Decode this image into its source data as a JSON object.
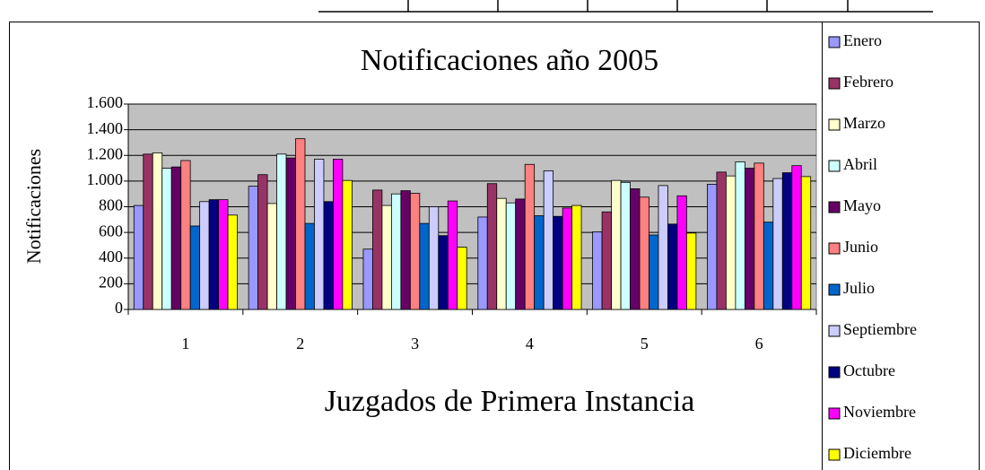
{
  "chart_data": {
    "type": "bar",
    "title": "Notificaciones año 2005",
    "x_label": "Juzgados  de Primera Instancia",
    "y_label": "Notificaciones",
    "categories": [
      "1",
      "2",
      "3",
      "4",
      "5",
      "6"
    ],
    "ylim": [
      0,
      1600
    ],
    "yticks": [
      0,
      {
        "value": 200,
        "label": "200"
      },
      {
        "value": 400,
        "label": "400"
      },
      {
        "value": 600,
        "label": "600"
      },
      {
        "value": 800,
        "label": "800"
      },
      {
        "value": 1000,
        "label": "1.000"
      },
      {
        "value": 1200,
        "label": "1.200"
      },
      {
        "value": 1400,
        "label": "1.400"
      },
      {
        "value": 1600,
        "label": "1.600"
      }
    ],
    "grid": true,
    "legend": "right",
    "series": [
      {
        "name": "Enero",
        "color": "#9999ff",
        "values": [
          810,
          960,
          470,
          720,
          605,
          975
        ]
      },
      {
        "name": "Febrero",
        "color": "#993366",
        "values": [
          1210,
          1050,
          930,
          980,
          760,
          1070
        ]
      },
      {
        "name": "Marzo",
        "color": "#ffffcc",
        "values": [
          1220,
          825,
          810,
          865,
          1005,
          1040
        ]
      },
      {
        "name": "Abril",
        "color": "#ccffff",
        "values": [
          1100,
          1210,
          900,
          830,
          990,
          1150
        ]
      },
      {
        "name": "Mayo",
        "color": "#660066",
        "values": [
          1110,
          1180,
          925,
          860,
          940,
          1100
        ]
      },
      {
        "name": "Junio",
        "color": "#ff8080",
        "values": [
          1160,
          1330,
          905,
          1130,
          875,
          1140
        ]
      },
      {
        "name": "Julio",
        "color": "#0066cc",
        "values": [
          650,
          670,
          670,
          730,
          580,
          680
        ]
      },
      {
        "name": "Septiembre",
        "color": "#ccccff",
        "values": [
          840,
          1170,
          800,
          1080,
          965,
          1020
        ]
      },
      {
        "name": "Octubre",
        "color": "#000080",
        "values": [
          855,
          840,
          575,
          725,
          665,
          1065
        ]
      },
      {
        "name": "Noviembre",
        "color": "#ff00ff",
        "values": [
          855,
          1170,
          845,
          790,
          885,
          1120
        ]
      },
      {
        "name": "Diciembre",
        "color": "#ffff00",
        "values": [
          735,
          1005,
          485,
          810,
          595,
          1035
        ]
      }
    ]
  }
}
